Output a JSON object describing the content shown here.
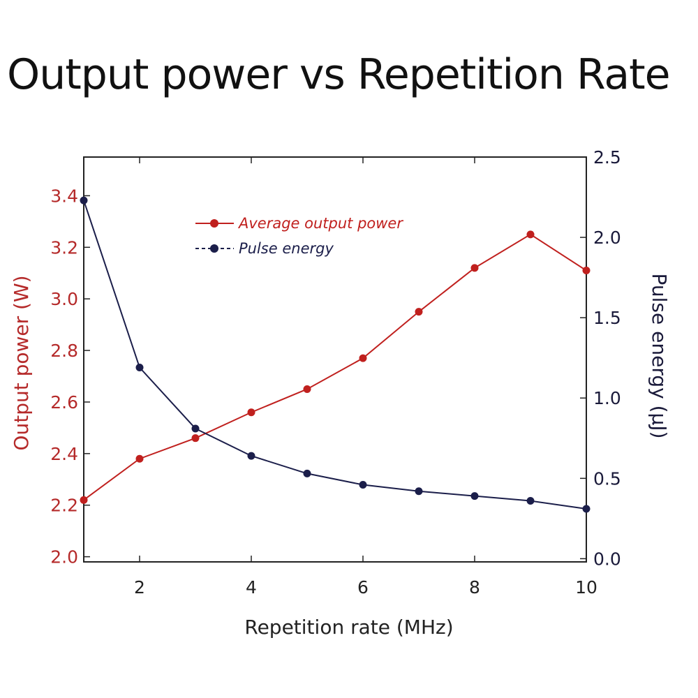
{
  "chart_data": {
    "type": "line",
    "title": "Output power vs Repetition Rate",
    "xlabel": "Repetition rate (MHz)",
    "ylabel_left": "Output power (W)",
    "ylabel_right": "Pulse energy (µJ)",
    "xlim": [
      1,
      10
    ],
    "ylim_left": [
      1.98,
      3.55
    ],
    "ylim_right": [
      -0.02,
      2.5
    ],
    "x_ticks": [
      2,
      4,
      6,
      8,
      10
    ],
    "y_left_ticks": [
      2.0,
      2.2,
      2.4,
      2.6,
      2.8,
      3.0,
      3.2,
      3.4
    ],
    "y_right_ticks": [
      0.0,
      0.5,
      1.0,
      1.5,
      2.0,
      2.5
    ],
    "grid": false,
    "legend_position": "top-center",
    "x": [
      1,
      2,
      3,
      4,
      5,
      6,
      7,
      8,
      9,
      10
    ],
    "series": [
      {
        "name": "Average output power",
        "axis": "left",
        "color": "#c0201e",
        "values": [
          2.22,
          2.38,
          2.46,
          2.56,
          2.65,
          2.77,
          2.95,
          3.12,
          3.25,
          3.11
        ]
      },
      {
        "name": "Pulse energy",
        "axis": "right",
        "color": "#1b1e4a",
        "values": [
          2.23,
          1.19,
          0.81,
          0.64,
          0.53,
          0.46,
          0.42,
          0.39,
          0.36,
          0.31
        ]
      }
    ]
  },
  "colors": {
    "left_axis": "#b52a2a",
    "right_axis": "#1a1a3a",
    "frame": "#222222"
  }
}
